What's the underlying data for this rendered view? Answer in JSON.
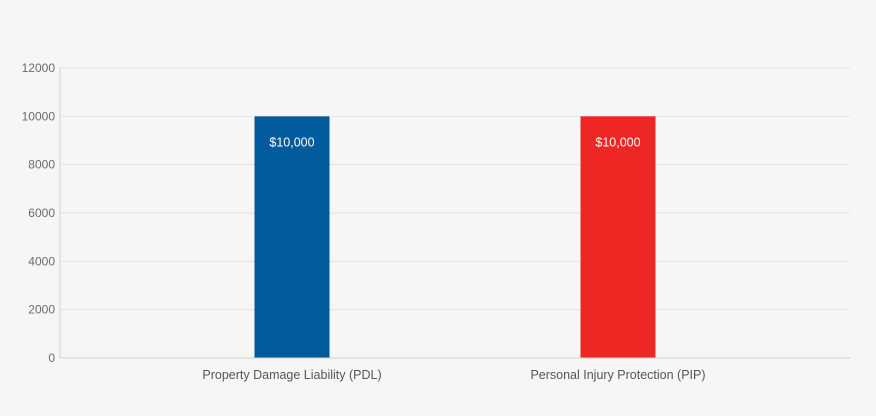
{
  "chart_data": {
    "type": "bar",
    "categories": [
      "Property Damage Liability (PDL)",
      "Personal Injury Protection (PIP)"
    ],
    "values": [
      10000,
      10000
    ],
    "data_labels": [
      "$10,000",
      "$10,000"
    ],
    "colors": [
      "#005a9c",
      "#ee2624"
    ],
    "title": "",
    "xlabel": "",
    "ylabel": "",
    "ylim": [
      0,
      12000
    ],
    "yticks": [
      0,
      2000,
      4000,
      6000,
      8000,
      10000,
      12000
    ],
    "ytick_labels": [
      "0",
      "2000",
      "4000",
      "6000",
      "8000",
      "10000",
      "12000"
    ],
    "grid": true,
    "legend": "none"
  }
}
